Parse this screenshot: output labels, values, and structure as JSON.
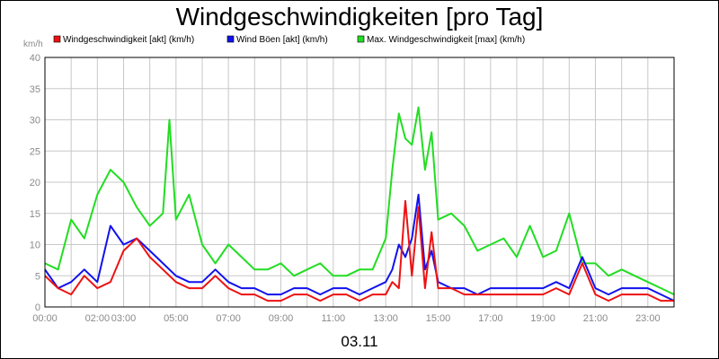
{
  "chart_data": {
    "type": "line",
    "title": "Windgeschwindigkeiten [pro Tag]",
    "ylabel": "km/h",
    "date_label": "03.11",
    "ylim": [
      0,
      40
    ],
    "yticks": [
      0,
      5,
      10,
      15,
      20,
      25,
      30,
      35,
      40
    ],
    "xlim_hours": [
      0,
      24
    ],
    "xticks": [
      {
        "h": 0,
        "label": "00:00"
      },
      {
        "h": 2,
        "label": "02:00"
      },
      {
        "h": 3,
        "label": "03:00"
      },
      {
        "h": 5,
        "label": "05:00"
      },
      {
        "h": 7,
        "label": "07:00"
      },
      {
        "h": 9,
        "label": "09:00"
      },
      {
        "h": 11,
        "label": "11:00"
      },
      {
        "h": 13,
        "label": "13:00"
      },
      {
        "h": 15,
        "label": "15:00"
      },
      {
        "h": 17,
        "label": "17:00"
      },
      {
        "h": 19,
        "label": "19:00"
      },
      {
        "h": 21,
        "label": "21:00"
      },
      {
        "h": 23,
        "label": "23:00"
      }
    ],
    "grid": true,
    "legend_position": "top",
    "series": [
      {
        "name": "Windgeschwindigkeit [akt] (km/h)",
        "color": "#ee1111",
        "x": [
          0,
          0.5,
          1,
          1.5,
          2,
          2.5,
          3,
          3.5,
          4,
          4.5,
          5,
          5.5,
          6,
          6.5,
          7,
          7.5,
          8,
          8.5,
          9,
          9.5,
          10,
          10.5,
          11,
          11.5,
          12,
          12.5,
          13,
          13.25,
          13.5,
          13.75,
          14,
          14.25,
          14.5,
          14.75,
          15,
          15.5,
          16,
          16.5,
          17,
          17.5,
          18,
          18.5,
          19,
          19.5,
          20,
          20.5,
          21,
          21.5,
          22,
          22.5,
          23,
          23.5,
          24
        ],
        "y": [
          5,
          3,
          2,
          5,
          3,
          4,
          9,
          11,
          8,
          6,
          4,
          3,
          3,
          5,
          3,
          2,
          2,
          1,
          1,
          2,
          2,
          1,
          2,
          2,
          1,
          2,
          2,
          4,
          3,
          17,
          5,
          16,
          3,
          12,
          3,
          3,
          2,
          2,
          2,
          2,
          2,
          2,
          2,
          3,
          2,
          7,
          2,
          1,
          2,
          2,
          2,
          1,
          1
        ]
      },
      {
        "name": "Wind Böen [akt] (km/h)",
        "color": "#1111ee",
        "x": [
          0,
          0.5,
          1,
          1.5,
          2,
          2.5,
          3,
          3.5,
          4,
          4.5,
          5,
          5.5,
          6,
          6.5,
          7,
          7.5,
          8,
          8.5,
          9,
          9.5,
          10,
          10.5,
          11,
          11.5,
          12,
          12.5,
          13,
          13.25,
          13.5,
          13.75,
          14,
          14.25,
          14.5,
          14.75,
          15,
          15.5,
          16,
          16.5,
          17,
          17.5,
          18,
          18.5,
          19,
          19.5,
          20,
          20.5,
          21,
          21.5,
          22,
          22.5,
          23,
          23.5,
          24
        ],
        "y": [
          6,
          3,
          4,
          6,
          4,
          13,
          10,
          11,
          9,
          7,
          5,
          4,
          4,
          6,
          4,
          3,
          3,
          2,
          2,
          3,
          3,
          2,
          3,
          3,
          2,
          3,
          4,
          6,
          10,
          8,
          11,
          18,
          6,
          9,
          4,
          3,
          3,
          2,
          3,
          3,
          3,
          3,
          3,
          4,
          3,
          8,
          3,
          2,
          3,
          3,
          3,
          2,
          1
        ]
      },
      {
        "name": "Max. Windgeschwindigkeit [max] (km/h)",
        "color": "#22dd22",
        "x": [
          0,
          0.5,
          1,
          1.5,
          2,
          2.5,
          3,
          3.5,
          4,
          4.5,
          4.75,
          5,
          5.5,
          6,
          6.5,
          7,
          7.5,
          8,
          8.5,
          9,
          9.5,
          10,
          10.5,
          11,
          11.5,
          12,
          12.5,
          13,
          13.25,
          13.5,
          13.75,
          14,
          14.25,
          14.5,
          14.75,
          15,
          15.5,
          16,
          16.5,
          17,
          17.5,
          18,
          18.5,
          19,
          19.5,
          20,
          20.5,
          21,
          21.5,
          22,
          22.5,
          23,
          23.5,
          24
        ],
        "y": [
          7,
          6,
          14,
          11,
          18,
          22,
          20,
          16,
          13,
          15,
          30,
          14,
          18,
          10,
          7,
          10,
          8,
          6,
          6,
          7,
          5,
          6,
          7,
          5,
          5,
          6,
          6,
          11,
          22,
          31,
          27,
          26,
          32,
          22,
          28,
          14,
          15,
          13,
          9,
          10,
          11,
          8,
          13,
          8,
          9,
          15,
          7,
          7,
          5,
          6,
          5,
          4,
          3,
          2
        ]
      }
    ]
  }
}
